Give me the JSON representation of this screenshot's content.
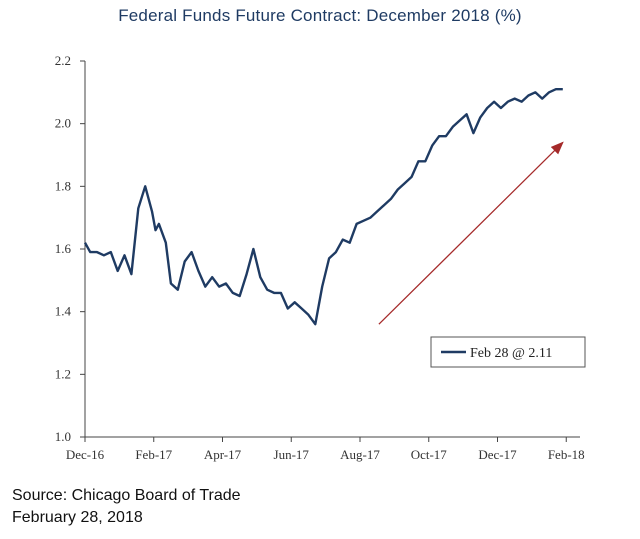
{
  "title": "Federal Funds Future Contract: December 2018 (%)",
  "source": {
    "line1": "Source: Chicago Board of Trade",
    "line2": "February 28, 2018"
  },
  "chart_data": {
    "type": "line",
    "title": "Federal Funds Future Contract: December 2018 (%)",
    "xlabel": "",
    "ylabel": "",
    "ylim": [
      1.0,
      2.2
    ],
    "y_ticks": [
      "1.0",
      "1.2",
      "1.4",
      "1.6",
      "1.8",
      "2.0",
      "2.2"
    ],
    "x_ticks": [
      "Dec-16",
      "Feb-17",
      "Apr-17",
      "Jun-17",
      "Aug-17",
      "Oct-17",
      "Dec-17",
      "Feb-18"
    ],
    "x_range": [
      0,
      14.4
    ],
    "grid": false,
    "legend_position": "lower-right",
    "legend_entry": "Feb 28 @ 2.11",
    "line_color": "#1f3b63",
    "trend_arrow": {
      "color": "#a52a2a",
      "from": [
        8.55,
        1.36
      ],
      "to": [
        13.9,
        1.94
      ]
    },
    "series": [
      {
        "x": [
          0.0,
          0.15,
          0.35,
          0.55,
          0.75,
          0.95,
          1.15,
          1.35,
          1.55,
          1.75,
          1.95,
          2.05,
          2.15,
          2.35,
          2.5,
          2.7,
          2.9,
          3.1,
          3.3,
          3.5,
          3.7,
          3.9,
          4.1,
          4.3,
          4.5,
          4.7,
          4.9,
          5.1,
          5.3,
          5.5,
          5.7,
          5.9,
          6.1,
          6.3,
          6.5,
          6.7,
          6.9,
          7.1,
          7.3,
          7.5,
          7.7,
          7.9,
          8.1,
          8.3,
          8.5,
          8.7,
          8.9,
          9.1,
          9.3,
          9.5,
          9.7,
          9.9,
          10.1,
          10.3,
          10.5,
          10.7,
          10.9,
          11.1,
          11.3,
          11.5,
          11.7,
          11.9,
          12.1,
          12.3,
          12.5,
          12.7,
          12.9,
          13.1,
          13.3,
          13.5,
          13.7,
          13.9
        ],
        "values": [
          1.62,
          1.59,
          1.59,
          1.58,
          1.59,
          1.53,
          1.58,
          1.52,
          1.73,
          1.8,
          1.72,
          1.66,
          1.68,
          1.62,
          1.49,
          1.47,
          1.56,
          1.59,
          1.53,
          1.48,
          1.51,
          1.48,
          1.49,
          1.46,
          1.45,
          1.52,
          1.6,
          1.51,
          1.47,
          1.46,
          1.46,
          1.41,
          1.43,
          1.41,
          1.39,
          1.36,
          1.48,
          1.57,
          1.59,
          1.63,
          1.62,
          1.68,
          1.69,
          1.7,
          1.72,
          1.74,
          1.76,
          1.79,
          1.81,
          1.83,
          1.88,
          1.88,
          1.93,
          1.96,
          1.96,
          1.99,
          2.01,
          2.03,
          1.97,
          2.02,
          2.05,
          2.07,
          2.05,
          2.07,
          2.08,
          2.07,
          2.09,
          2.1,
          2.08,
          2.1,
          2.11,
          2.11
        ],
        "color": "#1f3b63"
      }
    ]
  }
}
